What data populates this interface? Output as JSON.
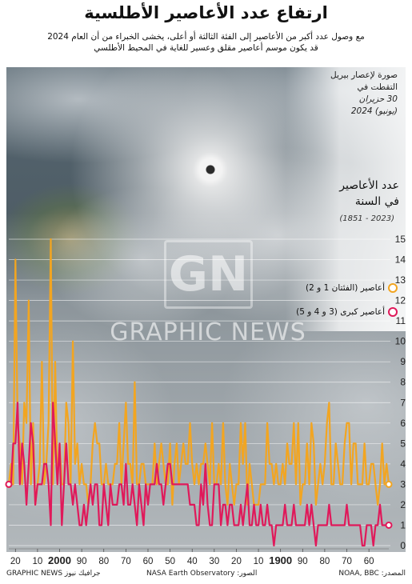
{
  "header": {
    "title": "ارتفاع عدد الأعاصير الأطلسية",
    "subtitle_line1": "مع وصول عدد أكبر من الأعاصير إلى الفئة الثالثة أو أعلى، يخشى الخبراء من أن العام 2024",
    "subtitle_line2": "قد يكون موسم أعاصير مقلق وعسير للغاية في المحيط الأطلسي"
  },
  "photo_caption": {
    "line1": "صورة لإعصار بيريل",
    "line2": "التقطت في",
    "line3": "30 حزيران",
    "line4": "(يونيو) 2024"
  },
  "count_title": {
    "line1": "عدد الأعاصير",
    "line2": "في السنة"
  },
  "count_range": "(2023 - 1851)",
  "watermark": {
    "logo": "GN",
    "text": "GRAPHIC NEWS"
  },
  "footer": {
    "credit": "جرافيك نيوز GRAPHIC NEWS",
    "photo_source": "الصور: NASA Earth Observatory",
    "data_source": "المصدر: NOAA, BBC"
  },
  "colors": {
    "hurricanes": "#f2a521",
    "major": "#e0195a"
  },
  "chart_data": {
    "type": "line",
    "title": "عدد الأعاصير في السنة",
    "x_range": [
      1851,
      2023
    ],
    "x_axis_direction": "right-to-left",
    "ylim": [
      0,
      15
    ],
    "y_ticks": [
      0,
      1,
      2,
      3,
      4,
      5,
      6,
      7,
      8,
      9,
      10,
      11,
      12,
      13,
      14,
      15
    ],
    "x_tick_labels": [
      "60",
      "70",
      "80",
      "90",
      "1900",
      "10",
      "20",
      "30",
      "40",
      "50",
      "60",
      "70",
      "80",
      "90",
      "2000",
      "10",
      "20"
    ],
    "x_tick_years": [
      1860,
      1870,
      1880,
      1890,
      1900,
      1910,
      1920,
      1930,
      1940,
      1950,
      1960,
      1970,
      1980,
      1990,
      2000,
      2010,
      2020
    ],
    "grid": true,
    "legend_position": "right",
    "series": [
      {
        "name": "أعاصير (الفئتان 1 و 2)",
        "color": "#f2a521",
        "start_year": 1851,
        "values": [
          3,
          4,
          3,
          5,
          3,
          2,
          3,
          4,
          4,
          3,
          3,
          5,
          3,
          3,
          3,
          5,
          5,
          3,
          6,
          6,
          5,
          3,
          3,
          4,
          5,
          3,
          3,
          7,
          6,
          4,
          3,
          4,
          3,
          2,
          5,
          6,
          3,
          5,
          3,
          3,
          2,
          6,
          3,
          6,
          4,
          4,
          5,
          3,
          4,
          3,
          3,
          4,
          3,
          4,
          4,
          6,
          3,
          3,
          3,
          2,
          2,
          2,
          3,
          4,
          2,
          6,
          4,
          6,
          3,
          3,
          2,
          3,
          4,
          2,
          3,
          6,
          3,
          4,
          3,
          3,
          6,
          3,
          4,
          5,
          4,
          4,
          3,
          4,
          3,
          4,
          6,
          4,
          4,
          5,
          4,
          3,
          5,
          4,
          2,
          5,
          3,
          3,
          4,
          5,
          4,
          3,
          5,
          3,
          3,
          3,
          3,
          4,
          4,
          3,
          3,
          8,
          3,
          4,
          4,
          7,
          5,
          3,
          6,
          4,
          4,
          3,
          3,
          3,
          4,
          3,
          3,
          5,
          5,
          6,
          5,
          3,
          2,
          3,
          3,
          4,
          3,
          5,
          4,
          10,
          3,
          6,
          7,
          3,
          3,
          5,
          3,
          9,
          3,
          15,
          6,
          4,
          3,
          9,
          4,
          3,
          2,
          6,
          3,
          12,
          6,
          7,
          3,
          5,
          6,
          14,
          3,
          4,
          3
        ]
      },
      {
        "name": "أعاصير كبرى (3 و 4 و 5)",
        "color": "#e0195a",
        "start_year": 1851,
        "values": [
          1,
          1,
          1,
          1,
          2,
          1,
          1,
          0,
          1,
          1,
          1,
          0,
          0,
          1,
          1,
          1,
          1,
          1,
          1,
          2,
          1,
          1,
          1,
          1,
          1,
          1,
          1,
          2,
          1,
          1,
          1,
          1,
          1,
          0,
          1,
          2,
          1,
          2,
          1,
          1,
          1,
          1,
          1,
          2,
          1,
          1,
          1,
          2,
          1,
          1,
          1,
          1,
          0,
          1,
          1,
          2,
          1,
          1,
          2,
          1,
          1,
          2,
          1,
          1,
          3,
          2,
          1,
          2,
          1,
          1,
          1,
          2,
          2,
          1,
          2,
          2,
          1,
          3,
          3,
          3,
          1,
          1,
          2,
          4,
          2,
          3,
          1,
          1,
          2,
          2,
          2,
          3,
          3,
          3,
          3,
          3,
          3,
          3,
          3,
          4,
          4,
          3,
          2,
          3,
          3,
          4,
          3,
          3,
          3,
          2,
          3,
          1,
          2,
          3,
          1,
          2,
          3,
          2,
          2,
          4,
          2,
          3,
          3,
          2,
          2,
          2,
          3,
          1,
          2,
          3,
          1,
          1,
          3,
          3,
          2,
          3,
          2,
          1,
          2,
          1,
          1,
          2,
          3,
          2,
          3,
          3,
          5,
          3,
          1,
          5,
          3,
          5,
          7,
          1,
          3,
          4,
          4,
          3,
          3,
          3,
          2,
          5,
          6,
          4,
          2,
          4,
          5,
          3,
          7,
          5,
          5,
          3,
          3
        ]
      }
    ]
  }
}
